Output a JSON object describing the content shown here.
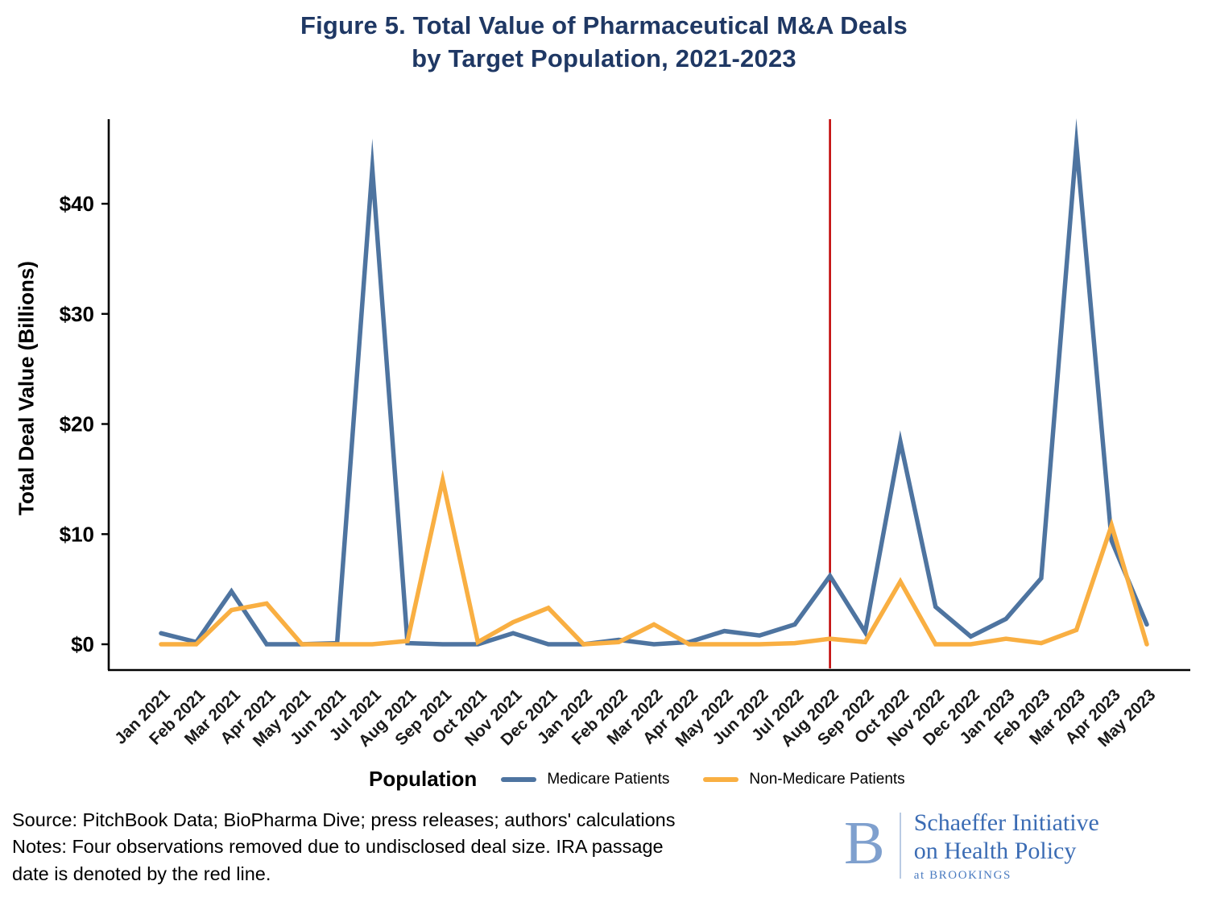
{
  "title": {
    "line1": "Figure 5. Total Value of Pharmaceutical M&A Deals",
    "line2": "by Target Population, 2021-2023"
  },
  "chart_data": {
    "type": "line",
    "title": "Figure 5. Total Value of Pharmaceutical M&A Deals by Target Population, 2021-2023",
    "ylabel": "Total Deal Value (Billions)",
    "legend_title": "Population",
    "ylim": [
      0,
      47
    ],
    "grid": false,
    "legend_position": "bottom",
    "yticks": [
      {
        "value": 0,
        "label": "$0"
      },
      {
        "value": 10,
        "label": "$10"
      },
      {
        "value": 20,
        "label": "$20"
      },
      {
        "value": 30,
        "label": "$30"
      },
      {
        "value": 40,
        "label": "$40"
      }
    ],
    "categories": [
      "Jan 2021",
      "Feb 2021",
      "Mar 2021",
      "Apr 2021",
      "May 2021",
      "Jun 2021",
      "Jul 2021",
      "Aug 2021",
      "Sep 2021",
      "Oct 2021",
      "Nov 2021",
      "Dec 2021",
      "Jan 2022",
      "Feb 2022",
      "Mar 2022",
      "Apr 2022",
      "May 2022",
      "Jun 2022",
      "Jul 2022",
      "Aug 2022",
      "Sep 2022",
      "Oct 2022",
      "Nov 2022",
      "Dec 2022",
      "Jan 2023",
      "Feb 2023",
      "Mar 2023",
      "Apr 2023",
      "May 2023"
    ],
    "series": [
      {
        "name": "Medicare Patients",
        "color": "#4E74A0",
        "values": [
          1.0,
          0.2,
          4.8,
          0.0,
          0.0,
          0.1,
          43.2,
          0.1,
          0.0,
          0.0,
          1.0,
          0.0,
          0.0,
          0.4,
          0.0,
          0.2,
          1.2,
          0.8,
          1.8,
          6.2,
          1.1,
          18.4,
          3.4,
          0.7,
          2.3,
          6.0,
          45.4,
          9.4,
          1.8
        ]
      },
      {
        "name": "Non-Medicare Patients",
        "color": "#F9AF42",
        "values": [
          0.0,
          0.0,
          3.1,
          3.7,
          0.0,
          0.0,
          0.0,
          0.3,
          14.9,
          0.2,
          2.0,
          3.3,
          0.0,
          0.2,
          1.8,
          0.0,
          0.0,
          0.0,
          0.1,
          0.5,
          0.2,
          5.7,
          0.0,
          0.0,
          0.5,
          0.1,
          1.3,
          10.8,
          0.0
        ]
      }
    ],
    "vline": {
      "category": "Aug 2022",
      "color": "#C00000",
      "meaning": "IRA passage date"
    }
  },
  "footer": {
    "source_line1": "Source: PitchBook Data; BioPharma Dive; press releases; authors' calculations",
    "source_line2": "Notes: Four observations removed due to undisclosed deal size. IRA passage",
    "source_line3": "date is denoted by the red line.",
    "logo": {
      "letter": "B",
      "name_line1": "Schaeffer Initiative",
      "name_line2": "on Health Policy",
      "subtitle": "at BROOKINGS"
    }
  },
  "colors": {
    "title_text": "#1F3864",
    "medicare_line": "#4E74A0",
    "non_medicare_line": "#F9AF42",
    "ira_line": "#C00000",
    "logo_letter": "#7FA0CE",
    "logo_text": "#3B6CB4"
  }
}
